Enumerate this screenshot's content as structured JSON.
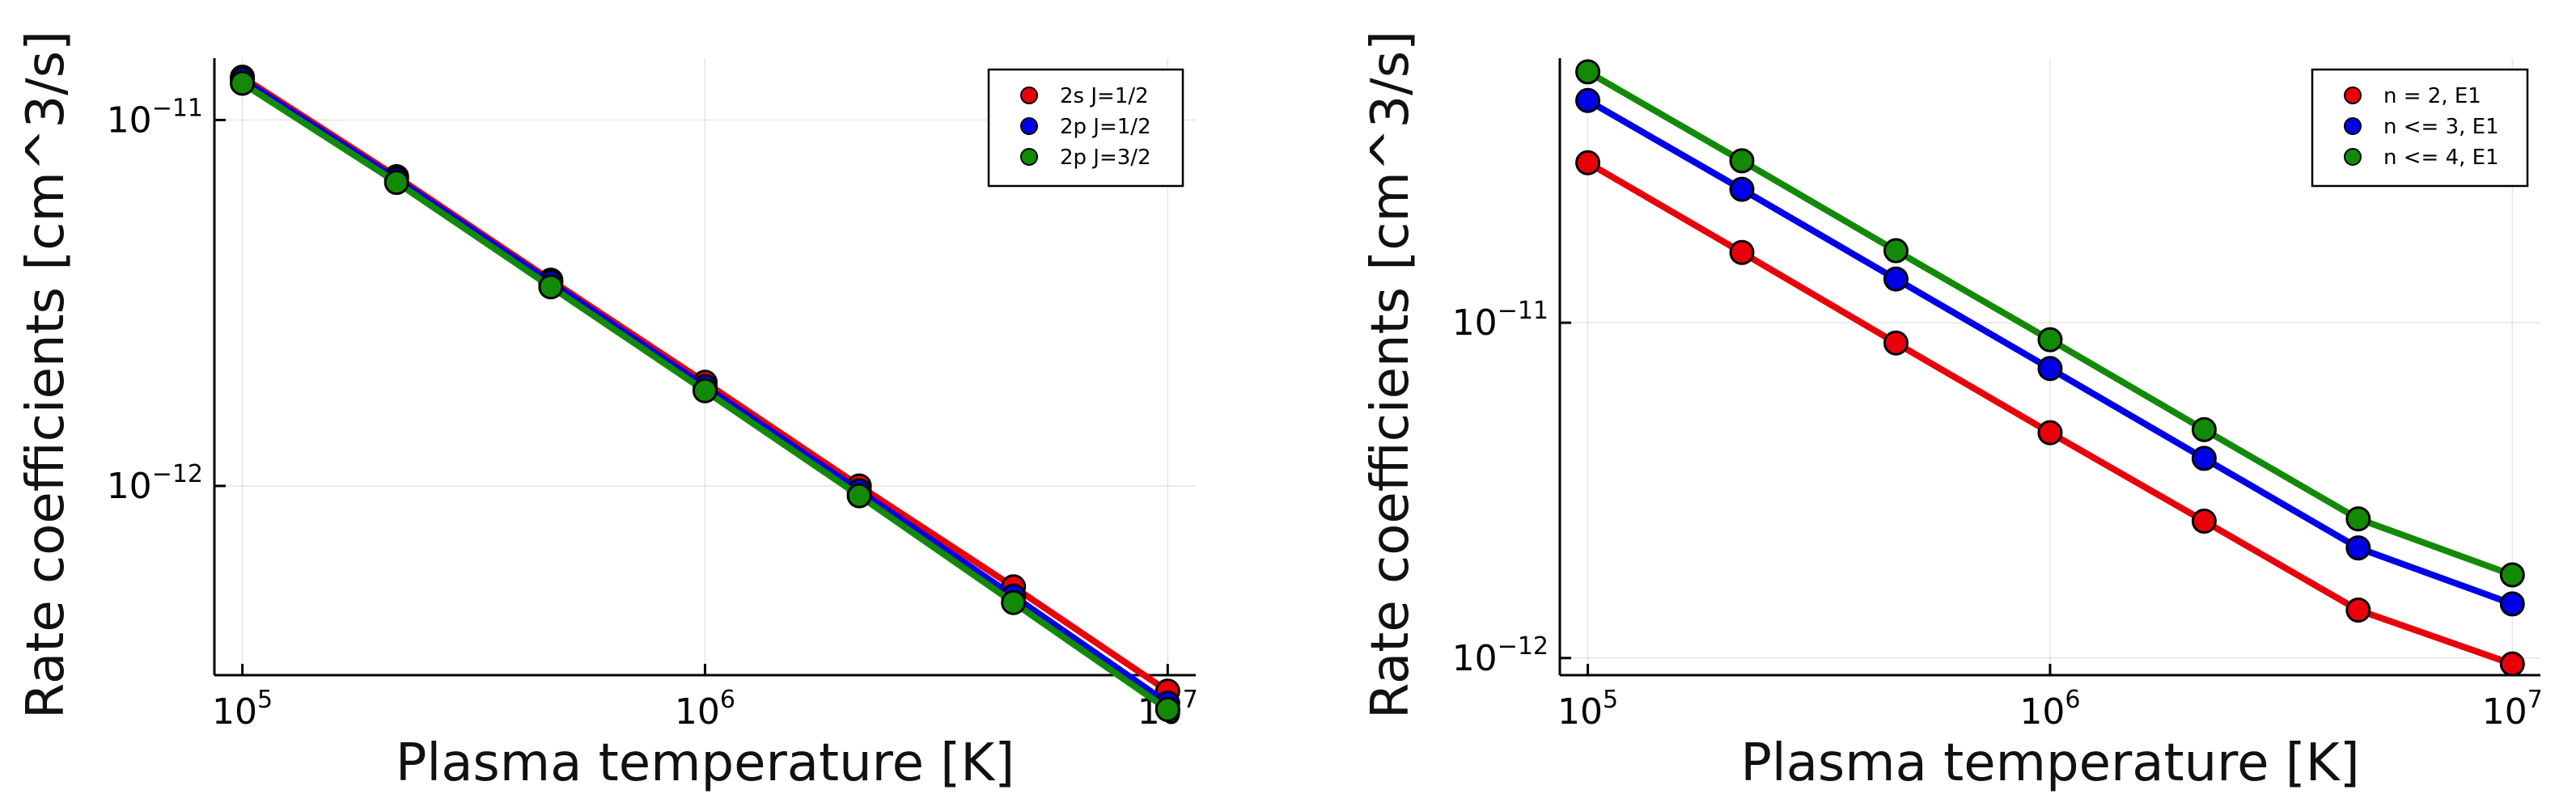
{
  "chart_data": [
    {
      "type": "line",
      "xscale": "log",
      "yscale": "log",
      "xlabel": "Plasma temperature [K]",
      "ylabel": "Rate coefficients [cm^3/s]",
      "xlim": [
        87000,
        11500000
      ],
      "ylim": [
        3.04e-13,
        1.475e-11
      ],
      "x": [
        100000,
        215443,
        464159,
        1000000,
        2154435,
        4641589,
        10000000
      ],
      "xticks": [
        {
          "value": 100000,
          "base": "10",
          "exp": "5"
        },
        {
          "value": 1000000,
          "base": "10",
          "exp": "6"
        },
        {
          "value": 10000000,
          "base": "10",
          "exp": "7"
        }
      ],
      "yticks": [
        {
          "value": 1e-11,
          "base": "10",
          "exp": "−11"
        },
        {
          "value": 1e-12,
          "base": "10",
          "exp": "−12"
        }
      ],
      "legend": "top-right",
      "series": [
        {
          "name": "2s J=1/2",
          "color": "#e8000b",
          "values": [
            1.31e-11,
            7e-12,
            3.65e-12,
            1.92e-12,
            1e-12,
            5.3e-13,
            2.75e-13
          ]
        },
        {
          "name": "2p J=1/2",
          "color": "#0000e8",
          "values": [
            1.29e-11,
            6.9e-12,
            3.6e-12,
            1.87e-12,
            9.7e-13,
            5e-13,
            2.55e-13
          ]
        },
        {
          "name": "2p J=3/2",
          "color": "#138a07",
          "values": [
            1.26e-11,
            6.75e-12,
            3.5e-12,
            1.82e-12,
            9.4e-13,
            4.8e-13,
            2.45e-13
          ]
        }
      ]
    },
    {
      "type": "line",
      "xscale": "log",
      "yscale": "log",
      "xlabel": "Plasma temperature [K]",
      "ylabel": "Rate coefficients [cm^3/s]",
      "xlim": [
        87000,
        11500000
      ],
      "ylim": [
        8.89e-13,
        6.15e-11
      ],
      "x": [
        100000,
        215443,
        464159,
        1000000,
        2154435,
        4641589,
        10000000
      ],
      "xticks": [
        {
          "value": 100000,
          "base": "10",
          "exp": "5"
        },
        {
          "value": 1000000,
          "base": "10",
          "exp": "6"
        },
        {
          "value": 10000000,
          "base": "10",
          "exp": "7"
        }
      ],
      "yticks": [
        {
          "value": 1e-11,
          "base": "10",
          "exp": "−11"
        },
        {
          "value": 1e-12,
          "base": "10",
          "exp": "−12"
        }
      ],
      "legend": "top-right",
      "series": [
        {
          "name": "n = 2,  E1",
          "color": "#e8000b",
          "values": [
            3e-11,
            1.62e-11,
            8.7e-12,
            4.7e-12,
            2.56e-12,
            1.39e-12,
            9.6e-13
          ]
        },
        {
          "name": "n <= 3, E1",
          "color": "#0000e8",
          "values": [
            4.6e-11,
            2.5e-11,
            1.35e-11,
            7.3e-12,
            3.94e-12,
            2.13e-12,
            1.45e-12
          ]
        },
        {
          "name": "n <= 4, E1",
          "color": "#138a07",
          "values": [
            5.6e-11,
            3.04e-11,
            1.64e-11,
            8.9e-12,
            4.8e-12,
            2.6e-12,
            1.77e-12
          ]
        }
      ]
    }
  ]
}
